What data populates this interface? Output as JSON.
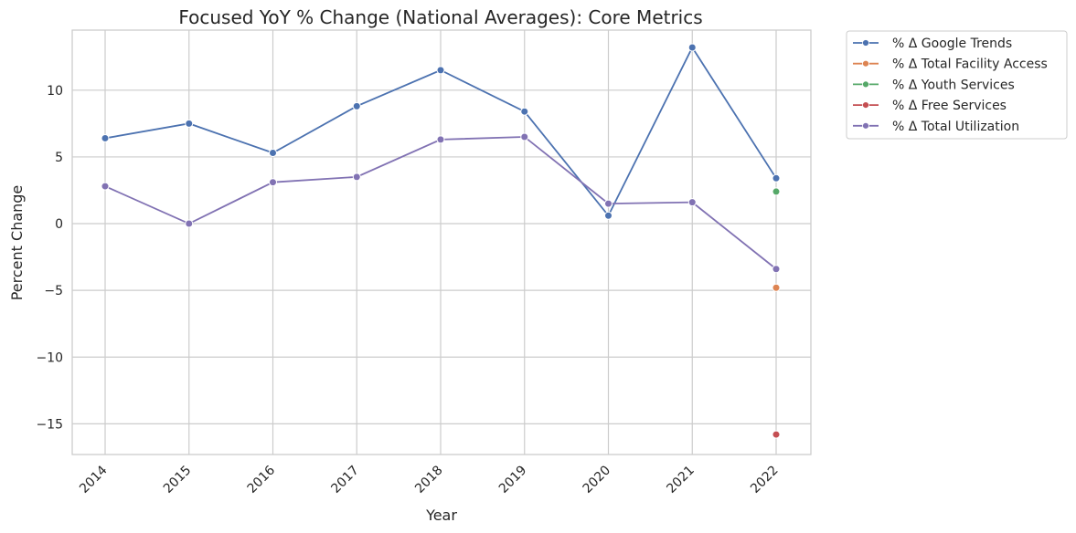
{
  "chart_data": {
    "type": "line",
    "title": "Focused YoY % Change (National Averages): Core Metrics",
    "xlabel": "Year",
    "ylabel": "Percent Change",
    "x": [
      "2014",
      "2015",
      "2016",
      "2017",
      "2018",
      "2019",
      "2020",
      "2021",
      "2022"
    ],
    "ylim": [
      -17.3,
      14.5
    ],
    "yticks": [
      10,
      5,
      0,
      -5,
      -10,
      -15
    ],
    "ytick_labels": [
      "10",
      "5",
      "0",
      "−5",
      "−10",
      "−15"
    ],
    "grid": true,
    "legend_position": "outside-top-right",
    "series": [
      {
        "name": "% Δ Google Trends",
        "color": "#4c72b0",
        "values": [
          6.4,
          7.5,
          5.3,
          8.8,
          11.5,
          8.4,
          0.6,
          13.2,
          3.4
        ]
      },
      {
        "name": "% Δ Total Facility Access",
        "color": "#dd8452",
        "values": [
          null,
          null,
          null,
          null,
          null,
          null,
          null,
          null,
          -4.8
        ]
      },
      {
        "name": "% Δ Youth Services",
        "color": "#55a868",
        "values": [
          null,
          null,
          null,
          null,
          null,
          null,
          null,
          null,
          2.4
        ]
      },
      {
        "name": "% Δ Free Services",
        "color": "#c44e52",
        "values": [
          null,
          null,
          null,
          null,
          null,
          null,
          null,
          null,
          -15.8
        ]
      },
      {
        "name": "% Δ Total Utilization",
        "color": "#8172b3",
        "values": [
          2.8,
          0.0,
          3.1,
          3.5,
          6.3,
          6.5,
          1.5,
          1.6,
          -3.4
        ]
      }
    ]
  }
}
